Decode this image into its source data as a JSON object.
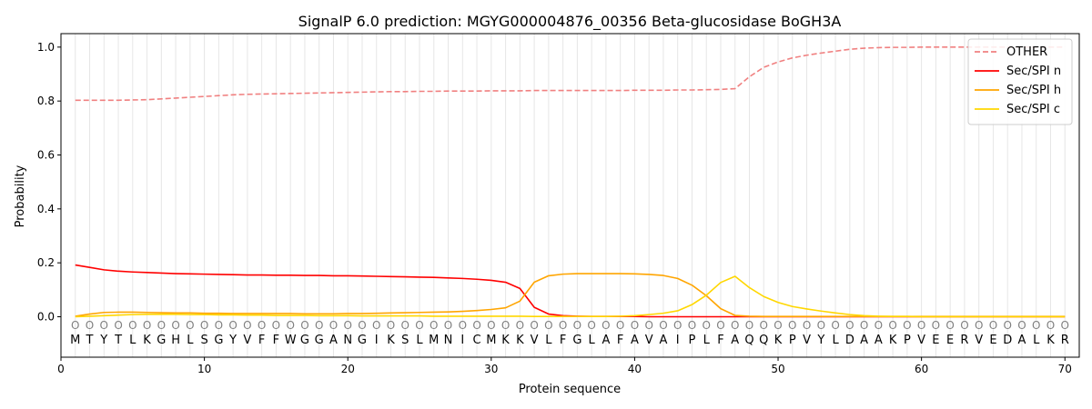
{
  "chart_data": {
    "type": "line",
    "title": "SignalP 6.0 prediction: MGYG000004876_00356 Beta-glucosidase BoGH3A",
    "xlabel": "Protein sequence",
    "ylabel": "Probability",
    "xlim": [
      0,
      71
    ],
    "ylim": [
      -0.15,
      1.05
    ],
    "xticks": [
      0,
      10,
      20,
      30,
      40,
      50,
      60,
      70
    ],
    "yticks": [
      0.0,
      0.2,
      0.4,
      0.6,
      0.8,
      1.0
    ],
    "xtick_labels": [
      "0",
      "10",
      "20",
      "30",
      "40",
      "50",
      "60",
      "70"
    ],
    "ytick_labels": [
      "0.0",
      "0.2",
      "0.4",
      "0.6",
      "0.8",
      "1.0"
    ],
    "grid": "vertical lines at each residue",
    "legend_position": "top-right",
    "sequence": [
      "M",
      "T",
      "Y",
      "T",
      "L",
      "K",
      "G",
      "H",
      "L",
      "S",
      "G",
      "Y",
      "V",
      "F",
      "F",
      "W",
      "G",
      "G",
      "A",
      "N",
      "G",
      "I",
      "K",
      "S",
      "L",
      "M",
      "N",
      "I",
      "C",
      "M",
      "K",
      "K",
      "V",
      "L",
      "F",
      "G",
      "L",
      "A",
      "F",
      "A",
      "V",
      "A",
      "I",
      "P",
      "L",
      "F",
      "A",
      "Q",
      "Q",
      "K",
      "P",
      "V",
      "Y",
      "L",
      "D",
      "A",
      "A",
      "K",
      "P",
      "V",
      "E",
      "E",
      "R",
      "V",
      "E",
      "D",
      "A",
      "L",
      "K",
      "R"
    ],
    "region_marker": "O",
    "x": [
      1,
      2,
      3,
      4,
      5,
      6,
      7,
      8,
      9,
      10,
      11,
      12,
      13,
      14,
      15,
      16,
      17,
      18,
      19,
      20,
      21,
      22,
      23,
      24,
      25,
      26,
      27,
      28,
      29,
      30,
      31,
      32,
      33,
      34,
      35,
      36,
      37,
      38,
      39,
      40,
      41,
      42,
      43,
      44,
      45,
      46,
      47,
      48,
      49,
      50,
      51,
      52,
      53,
      54,
      55,
      56,
      57,
      58,
      59,
      60,
      61,
      62,
      63,
      64,
      65,
      66,
      67,
      68,
      69,
      70
    ],
    "series": [
      {
        "name": "OTHER",
        "color": "#f08080",
        "dash": true,
        "values": [
          0.803,
          0.803,
          0.803,
          0.803,
          0.804,
          0.805,
          0.808,
          0.811,
          0.814,
          0.817,
          0.82,
          0.823,
          0.825,
          0.826,
          0.827,
          0.828,
          0.829,
          0.83,
          0.831,
          0.832,
          0.833,
          0.834,
          0.835,
          0.835,
          0.836,
          0.836,
          0.837,
          0.837,
          0.837,
          0.838,
          0.838,
          0.838,
          0.839,
          0.839,
          0.839,
          0.839,
          0.839,
          0.839,
          0.839,
          0.84,
          0.84,
          0.84,
          0.841,
          0.841,
          0.842,
          0.843,
          0.846,
          0.89,
          0.925,
          0.945,
          0.96,
          0.97,
          0.978,
          0.985,
          0.992,
          0.996,
          0.998,
          0.999,
          0.999,
          1.0,
          1.0,
          1.0,
          1.0,
          1.0,
          1.0,
          1.0,
          1.0,
          1.0,
          1.0,
          1.0
        ]
      },
      {
        "name": "Sec/SPI n",
        "color": "#ff0000",
        "dash": false,
        "values": [
          0.192,
          0.183,
          0.174,
          0.169,
          0.166,
          0.164,
          0.162,
          0.16,
          0.159,
          0.158,
          0.157,
          0.156,
          0.155,
          0.155,
          0.154,
          0.154,
          0.153,
          0.153,
          0.152,
          0.152,
          0.151,
          0.15,
          0.149,
          0.148,
          0.147,
          0.146,
          0.144,
          0.142,
          0.139,
          0.135,
          0.128,
          0.105,
          0.035,
          0.01,
          0.004,
          0.002,
          0.001,
          0.001,
          0.001,
          0.001,
          0.0,
          0.0,
          0.0,
          0.0,
          0.0,
          0.0,
          0.0,
          0.0,
          0.0,
          0.0,
          0.0,
          0.0,
          0.0,
          0.0,
          0.0,
          0.0,
          0.0,
          0.0,
          0.0,
          0.0,
          0.0,
          0.0,
          0.0,
          0.0,
          0.0,
          0.0,
          0.0,
          0.0,
          0.0,
          0.0
        ]
      },
      {
        "name": "Sec/SPI h",
        "color": "#ffa500",
        "dash": false,
        "values": [
          0.002,
          0.01,
          0.016,
          0.017,
          0.017,
          0.016,
          0.015,
          0.014,
          0.014,
          0.013,
          0.013,
          0.012,
          0.012,
          0.012,
          0.012,
          0.012,
          0.011,
          0.011,
          0.011,
          0.012,
          0.012,
          0.013,
          0.014,
          0.015,
          0.016,
          0.017,
          0.018,
          0.02,
          0.023,
          0.027,
          0.033,
          0.058,
          0.128,
          0.152,
          0.158,
          0.16,
          0.16,
          0.16,
          0.16,
          0.159,
          0.157,
          0.153,
          0.142,
          0.117,
          0.078,
          0.03,
          0.005,
          0.002,
          0.001,
          0.001,
          0.001,
          0.001,
          0.001,
          0.001,
          0.001,
          0.001,
          0.001,
          0.001,
          0.001,
          0.001,
          0.001,
          0.001,
          0.001,
          0.001,
          0.001,
          0.001,
          0.001,
          0.001,
          0.001,
          0.001
        ]
      },
      {
        "name": "Sec/SPI c",
        "color": "#ffd700",
        "dash": false,
        "values": [
          0.0,
          0.002,
          0.004,
          0.006,
          0.008,
          0.009,
          0.009,
          0.009,
          0.008,
          0.008,
          0.007,
          0.007,
          0.006,
          0.006,
          0.005,
          0.005,
          0.005,
          0.004,
          0.004,
          0.004,
          0.003,
          0.003,
          0.003,
          0.003,
          0.003,
          0.002,
          0.002,
          0.002,
          0.002,
          0.002,
          0.002,
          0.002,
          0.001,
          0.001,
          0.001,
          0.001,
          0.001,
          0.001,
          0.002,
          0.004,
          0.008,
          0.013,
          0.022,
          0.045,
          0.08,
          0.127,
          0.15,
          0.108,
          0.075,
          0.053,
          0.038,
          0.029,
          0.021,
          0.014,
          0.008,
          0.004,
          0.002,
          0.001,
          0.001,
          0.0,
          0.0,
          0.0,
          0.0,
          0.0,
          0.0,
          0.0,
          0.0,
          0.0,
          0.0,
          0.0
        ]
      }
    ]
  }
}
